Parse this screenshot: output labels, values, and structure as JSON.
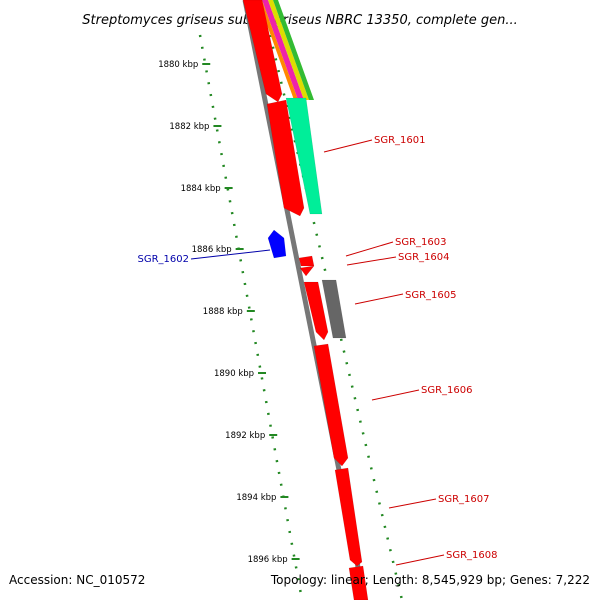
{
  "title": "Streptomyces griseus subsp. griseus NBRC 13350, complete gen...",
  "ruler": {
    "ticks": [
      {
        "pos_kbp": 1880,
        "label": "1880 kbp"
      },
      {
        "pos_kbp": 1882,
        "label": "1882 kbp"
      },
      {
        "pos_kbp": 1884,
        "label": "1884 kbp"
      },
      {
        "pos_kbp": 1886,
        "label": "1886 kbp"
      },
      {
        "pos_kbp": 1888,
        "label": "1888 kbp"
      },
      {
        "pos_kbp": 1890,
        "label": "1890 kbp"
      },
      {
        "pos_kbp": 1892,
        "label": "1892 kbp"
      },
      {
        "pos_kbp": 1894,
        "label": "1894 kbp"
      },
      {
        "pos_kbp": 1896,
        "label": "1896 kbp"
      }
    ]
  },
  "genes": [
    {
      "id": "SGR_1601",
      "label": "SGR_1601",
      "color": "#cc0000",
      "strand": "+"
    },
    {
      "id": "SGR_1602",
      "label": "SGR_1602",
      "color": "#0000aa",
      "strand": "-"
    },
    {
      "id": "SGR_1603",
      "label": "SGR_1603",
      "color": "#cc0000",
      "strand": "+"
    },
    {
      "id": "SGR_1604",
      "label": "SGR_1604",
      "color": "#cc0000",
      "strand": "+"
    },
    {
      "id": "SGR_1605",
      "label": "SGR_1605",
      "color": "#cc0000",
      "strand": "+"
    },
    {
      "id": "SGR_1606",
      "label": "SGR_1606",
      "color": "#cc0000",
      "strand": "+"
    },
    {
      "id": "SGR_1607",
      "label": "SGR_1607",
      "color": "#cc0000",
      "strand": "+"
    },
    {
      "id": "SGR_1608",
      "label": "SGR_1608",
      "color": "#cc0000",
      "strand": "+"
    }
  ],
  "colors": {
    "cds": "#ff0000",
    "cds_minus": "#0000ff",
    "feature_teal": "#00ee99",
    "feature_gray": "#666666",
    "axis": "#888888",
    "ruler": "#228822",
    "label_plus": "#cc0000",
    "label_minus": "#0000aa"
  },
  "footer": {
    "accession": "Accession: NC_010572",
    "topology": "Topology: linear; Length: 8,545,929 bp; Genes: 7,222"
  }
}
